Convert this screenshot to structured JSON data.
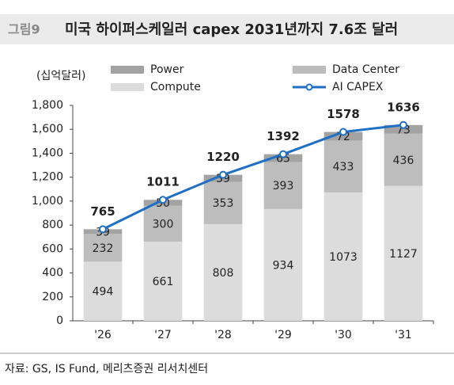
{
  "chart_data": {
    "type": "bar",
    "figure_label": "그림9",
    "title": "미국 하이퍼스케일러 capex 2031년까지 7.6조 달러",
    "y_label": "(십억달러)",
    "categories": [
      "'26",
      "'27",
      "'28",
      "'29",
      "'30",
      "'31"
    ],
    "series": [
      {
        "name": "Power",
        "color": "#a3a3a3",
        "mark": "bar",
        "values": [
          39,
          50,
          59,
          65,
          72,
          73
        ]
      },
      {
        "name": "Data Center",
        "color": "#bdbdbd",
        "mark": "bar",
        "values": [
          232,
          300,
          353,
          393,
          433,
          436
        ]
      },
      {
        "name": "Compute",
        "color": "#dcdcdc",
        "mark": "bar",
        "values": [
          494,
          661,
          808,
          934,
          1073,
          1127
        ]
      },
      {
        "name": "AI CAPEX",
        "color": "#1f6fc5",
        "mark": "line",
        "values": [
          765,
          1011,
          1220,
          1392,
          1578,
          1636
        ]
      }
    ],
    "ylim": [
      0,
      1800
    ],
    "yticks": [
      0,
      200,
      400,
      600,
      800,
      {
        "value": 1000,
        "label": "1,000"
      },
      {
        "value": 1200,
        "label": "1,200"
      },
      {
        "value": 1400,
        "label": "1,400"
      },
      {
        "value": 1600,
        "label": "1,600"
      },
      {
        "value": 1800,
        "label": "1,800"
      }
    ],
    "source": "자료: GS, IS Fund, 메리츠증권 리서치센터"
  }
}
